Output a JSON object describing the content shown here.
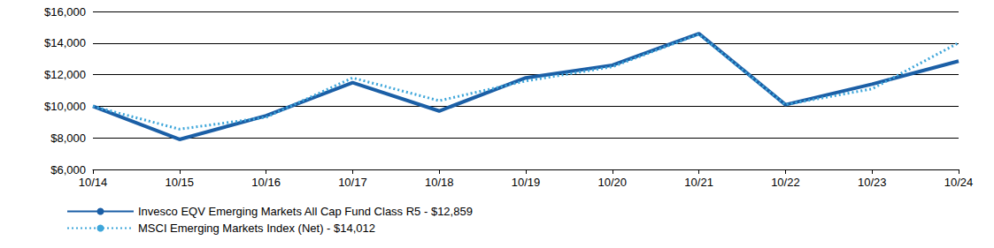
{
  "chart_data": {
    "type": "line",
    "categories": [
      "10/14",
      "10/15",
      "10/16",
      "10/17",
      "10/18",
      "10/19",
      "10/20",
      "10/21",
      "10/22",
      "10/23",
      "10/24"
    ],
    "series": [
      {
        "name": "Invesco EQV Emerging Markets All Cap Fund Class R5 - $12,859",
        "color": "#1b5fa6",
        "line_style": "solid",
        "values": [
          10000,
          7900,
          9400,
          11500,
          9700,
          11800,
          12600,
          14600,
          10100,
          11400,
          12859
        ]
      },
      {
        "name": "MSCI Emerging Markets Index (Net) - $14,012",
        "color": "#3ea6da",
        "line_style": "dotted",
        "values": [
          10000,
          8550,
          9300,
          11800,
          10350,
          11600,
          12500,
          14550,
          10100,
          11100,
          14012
        ]
      }
    ],
    "ylim": [
      6000,
      16000
    ],
    "yticks": [
      {
        "value": 6000,
        "label": "$6,000"
      },
      {
        "value": 8000,
        "label": "$8,000"
      },
      {
        "value": 10000,
        "label": "$10,000"
      },
      {
        "value": 12000,
        "label": "$12,000"
      },
      {
        "value": 14000,
        "label": "$14,000"
      },
      {
        "value": 16000,
        "label": "$16,000"
      }
    ],
    "grid": true,
    "legend": "bottom-left"
  }
}
